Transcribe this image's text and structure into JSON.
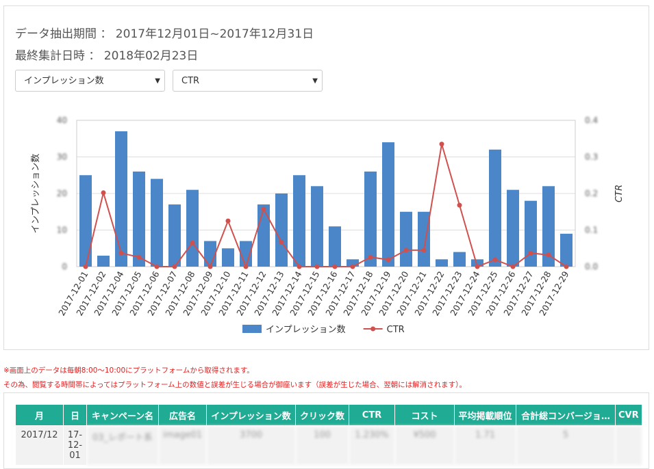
{
  "header": {
    "period": "データ抽出期間 ： 2017年12月01日~2017年12月31日",
    "updated": "最終集計日時 ： 2018年02月23日"
  },
  "selects": [
    "インプレッション数",
    "CTR"
  ],
  "chart_data": {
    "type": "bar-line",
    "categories": [
      "2017-12-01",
      "2017-12-02",
      "2017-12-04",
      "2017-12-05",
      "2017-12-06",
      "2017-12-07",
      "2017-12-08",
      "2017-12-09",
      "2017-12-10",
      "2017-12-11",
      "2017-12-12",
      "2017-12-13",
      "2017-12-14",
      "2017-12-15",
      "2017-12-16",
      "2017-12-17",
      "2017-12-18",
      "2017-12-19",
      "2017-12-20",
      "2017-12-21",
      "2017-12-22",
      "2017-12-23",
      "2017-12-24",
      "2017-12-25",
      "2017-12-26",
      "2017-12-27",
      "2017-12-28",
      "2017-12-29"
    ],
    "series": [
      {
        "name": "インプレッション数",
        "color": "#4a86c8",
        "type": "bar",
        "values": [
          25,
          3,
          37,
          26,
          24,
          17,
          21,
          7,
          5,
          7,
          17,
          20,
          25,
          22,
          11,
          2,
          26,
          34,
          15,
          15,
          2,
          4,
          2,
          32,
          21,
          18,
          22,
          9
        ]
      },
      {
        "name": "CTR",
        "color": "#d0504e",
        "type": "line",
        "axis": "y2",
        "values": [
          0,
          0.202,
          0.037,
          0.026,
          0,
          0,
          0.065,
          0,
          0.125,
          0,
          0.157,
          0.067,
          0,
          0,
          0,
          0,
          0.026,
          0.019,
          0.045,
          0.045,
          0.335,
          0.168,
          0,
          0.019,
          0,
          0.037,
          0.032,
          0
        ]
      }
    ],
    "y_label": "インプレッション数",
    "y2_label": "CTR",
    "ylim": [
      0,
      40
    ],
    "yticks": [
      0,
      10,
      20,
      30,
      40
    ],
    "y2lim": [
      0,
      0.4
    ],
    "y2ticks": [
      {
        "value": 0,
        "label": "0.0"
      },
      {
        "value": 0.1,
        "label": "0.1"
      },
      {
        "value": 0.2,
        "label": "0.2"
      },
      {
        "value": 0.3,
        "label": "0.3"
      },
      {
        "value": 0.4,
        "label": "0.4"
      }
    ],
    "grid": true,
    "legend": "bottom"
  },
  "notes": [
    "※画面上のデータは毎朝8:00～10:00にプラットフォームから取得されます。",
    "その為、閲覧する時間帯によってはプラットフォーム上の数値と誤差が生じる場合が御座います（誤差が生じた場合、翌朝には解消されます）。"
  ],
  "table": {
    "headers": [
      "月",
      "日",
      "キャンペーン名",
      "広告名",
      "インプレッション数",
      "クリック数",
      "CTR",
      "コスト",
      "平均掲載順位",
      "合計総コンバージョ…",
      "CVR"
    ],
    "rows": [
      [
        "2017/12",
        "17-12-01",
        "03_レポート系",
        "image01",
        "3700",
        "100",
        "1.230%",
        "¥500",
        "1.71",
        "5",
        ""
      ]
    ]
  }
}
